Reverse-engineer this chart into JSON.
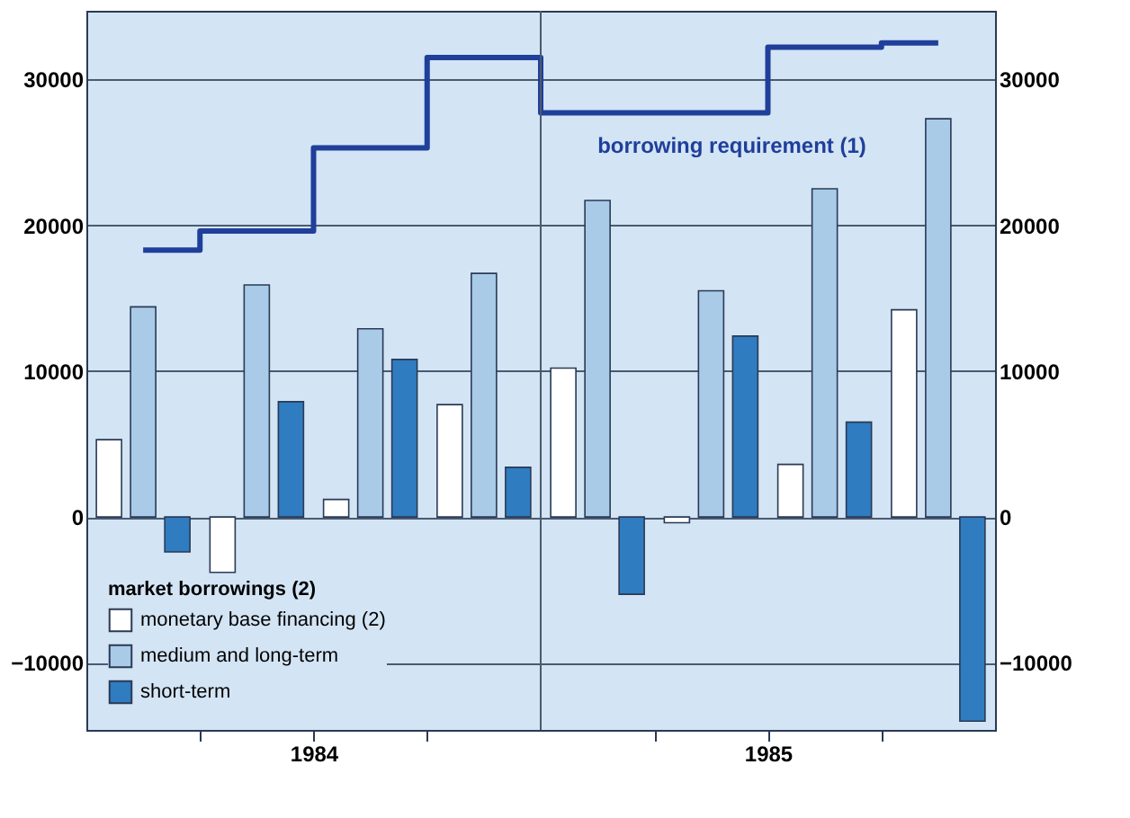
{
  "chart_data": {
    "type": "bar",
    "legend_title": "market borrowings (2)",
    "x": [
      1984.125,
      1984.375,
      1984.625,
      1984.875,
      1985.125,
      1985.375,
      1985.625,
      1985.875
    ],
    "series": [
      {
        "name": "monetary base financing (2)",
        "color": "#ffffff",
        "values": [
          5300,
          -3800,
          1200,
          7700,
          10200,
          -400,
          3600,
          14200
        ]
      },
      {
        "name": "medium and long-term",
        "color": "#a9cbe8",
        "values": [
          14400,
          15900,
          12900,
          16700,
          21700,
          15500,
          22500,
          27300
        ]
      },
      {
        "name": "short-term",
        "color": "#2f7cc0",
        "values": [
          -2400,
          7900,
          10800,
          3400,
          -5300,
          12400,
          6500,
          -14000
        ]
      },
      {
        "name": "borrowing requirement (1)",
        "type": "step",
        "color": "#1f3f9a",
        "values": [
          18300,
          19600,
          25300,
          31500,
          27700,
          27700,
          32200,
          32500
        ]
      }
    ],
    "xlim": [
      1984,
      1986
    ],
    "xticks": [
      {
        "value": 1984.25,
        "label": null
      },
      {
        "value": 1984.5,
        "label": "1984"
      },
      {
        "value": 1984.75,
        "label": null
      },
      {
        "value": 1985.25,
        "label": null
      },
      {
        "value": 1985.5,
        "label": "1985"
      },
      {
        "value": 1985.75,
        "label": null
      }
    ],
    "ylim": [
      -14600,
      34700
    ],
    "yticks": [
      -10000,
      0,
      10000,
      20000,
      30000
    ],
    "y2lim": [
      -14600,
      34700
    ],
    "y2ticks": [
      -10000,
      0,
      10000,
      20000,
      30000
    ],
    "ref_lines": [
      {
        "axis": "x",
        "value": 1985,
        "label": null
      }
    ],
    "grid": "y",
    "legend": "bottom left"
  }
}
